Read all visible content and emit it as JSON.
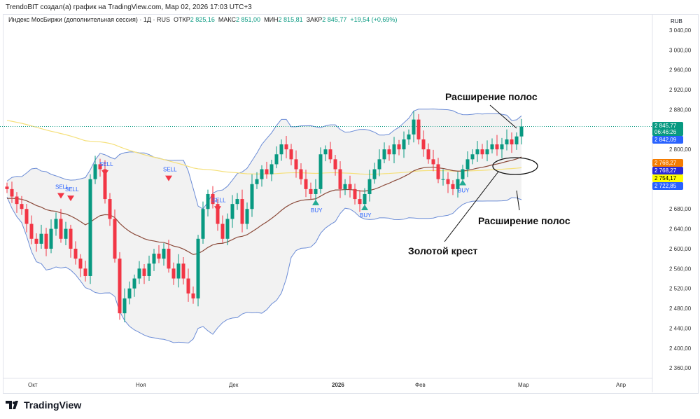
{
  "credit": "TrendoBIT создал(а) график на TradingView.com, Мар 02, 2026 17:03 UTC+3",
  "legend": {
    "symbol": "Индекс МосБиржи (дополнительная сессия) · 1Д · RUS",
    "open_label": "ОТКР",
    "open": "2 825,16",
    "high_label": "МАКС",
    "high": "2 851,00",
    "low_label": "МИН",
    "low": "2 815,81",
    "close_label": "ЗАКР",
    "close": "2 845,77",
    "change": "+19,54 (+0,69%)"
  },
  "currency": "RUB",
  "price_labels": [
    {
      "text": "2 845,77",
      "color": "#089981"
    },
    {
      "text": "06:46:26",
      "color": "#089981"
    },
    {
      "text": "2 842,09",
      "color": "#2962ff"
    },
    {
      "text": "2 768,27",
      "color": "#f57c00"
    },
    {
      "text": "2 768,27",
      "color": "#2a2ad8"
    },
    {
      "text": "2 754,17",
      "color": "#ffff00"
    },
    {
      "text": "2 722,85",
      "color": "#2962ff"
    }
  ],
  "annotations": {
    "top": "Расширение полос",
    "bottom": "Расширение полос",
    "cross": "Золотой крест"
  },
  "logo": "TradingView",
  "chart_data": {
    "type": "candlestick",
    "y_ticks": [
      3040,
      3000,
      2960,
      2920,
      2880,
      2840,
      2800,
      2760,
      2720,
      2680,
      2640,
      2600,
      2560,
      2520,
      2480,
      2440,
      2400,
      2360
    ],
    "y_tick_labels": [
      "3 040,00",
      "3 000,00",
      "2 960,00",
      "2 920,00",
      "2 880,00",
      "",
      "2 800,00",
      "",
      "",
      "2 680,00",
      "2 640,00",
      "2 600,00",
      "2 560,00",
      "2 520,00",
      "2 480,00",
      "2 440,00",
      "2 400,00",
      "2 360,00"
    ],
    "ylim": [
      2340,
      3060
    ],
    "x_labels": [
      {
        "text": "Окт",
        "i": 5
      },
      {
        "text": "Ноя",
        "i": 27
      },
      {
        "text": "Дек",
        "i": 46
      },
      {
        "text": "2026",
        "i": 67
      },
      {
        "text": "Фев",
        "i": 84
      },
      {
        "text": "Мар",
        "i": 105
      },
      {
        "text": "Апр",
        "i": 125
      }
    ],
    "closes": [
      2720,
      2705,
      2690,
      2680,
      2650,
      2620,
      2610,
      2630,
      2600,
      2640,
      2660,
      2620,
      2640,
      2600,
      2580,
      2560,
      2545,
      2740,
      2770,
      2760,
      2700,
      2660,
      2580,
      2470,
      2500,
      2520,
      2540,
      2560,
      2545,
      2570,
      2590,
      2580,
      2600,
      2560,
      2540,
      2570,
      2540,
      2510,
      2500,
      2620,
      2680,
      2710,
      2690,
      2650,
      2620,
      2660,
      2690,
      2700,
      2650,
      2680,
      2730,
      2740,
      2760,
      2750,
      2770,
      2790,
      2810,
      2800,
      2780,
      2760,
      2740,
      2720,
      2710,
      2720,
      2790,
      2800,
      2780,
      2760,
      2720,
      2730,
      2720,
      2700,
      2690,
      2710,
      2740,
      2760,
      2780,
      2800,
      2790,
      2810,
      2800,
      2820,
      2830,
      2860,
      2820,
      2800,
      2780,
      2770,
      2740,
      2740,
      2730,
      2720,
      2740,
      2760,
      2780,
      2790,
      2800,
      2790,
      2800,
      2810,
      2800,
      2810,
      2820,
      2810,
      2826,
      2846
    ],
    "signals": [
      {
        "type": "SELL",
        "i": 11
      },
      {
        "type": "SELL",
        "i": 13
      },
      {
        "type": "SELL",
        "i": 20
      },
      {
        "type": "SELL",
        "i": 33
      },
      {
        "type": "SELL",
        "i": 43
      },
      {
        "type": "BUY",
        "i": 63
      },
      {
        "type": "BUY",
        "i": 73
      },
      {
        "type": "BUY",
        "i": 93
      }
    ],
    "colors": {
      "up": "#089981",
      "down": "#f23645",
      "bb": "#6b8cd6",
      "ma_fast": "#8b4a3a",
      "ma_slow": "#f5e07a"
    }
  }
}
